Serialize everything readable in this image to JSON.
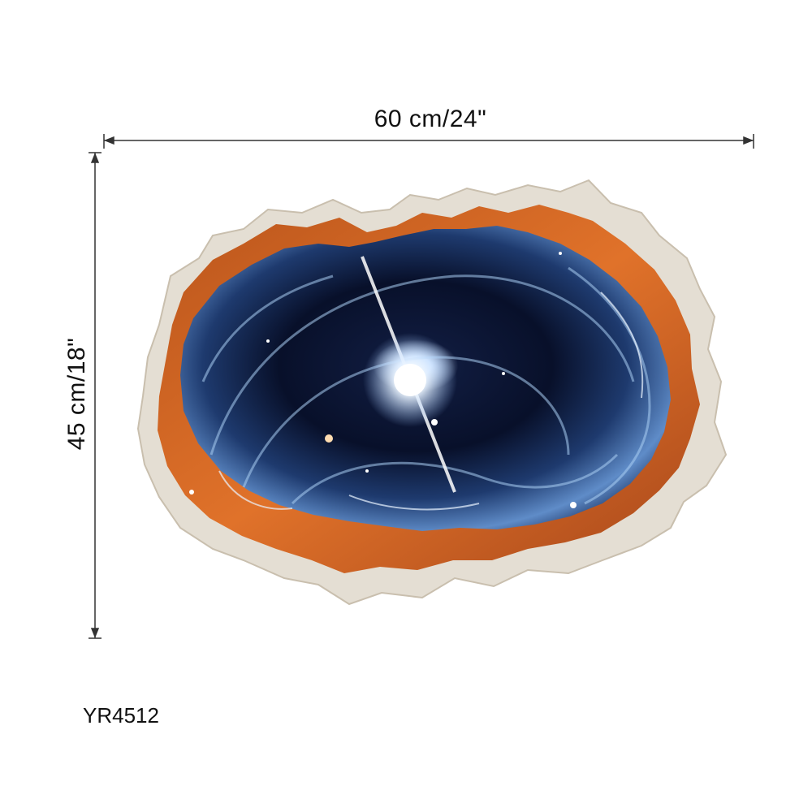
{
  "dimensions": {
    "width_label": "60 cm/24\"",
    "height_label": "45 cm/18\""
  },
  "product": {
    "code": "YR4512"
  },
  "artwork": {
    "subject": "broken-wall-hole-space-vortex",
    "colors": {
      "wall": "#e6e2da",
      "rim": "#d2611e",
      "vortex_dark": "#0a1230",
      "vortex_light": "#9fc4ee",
      "glow": "#ffffff"
    }
  }
}
